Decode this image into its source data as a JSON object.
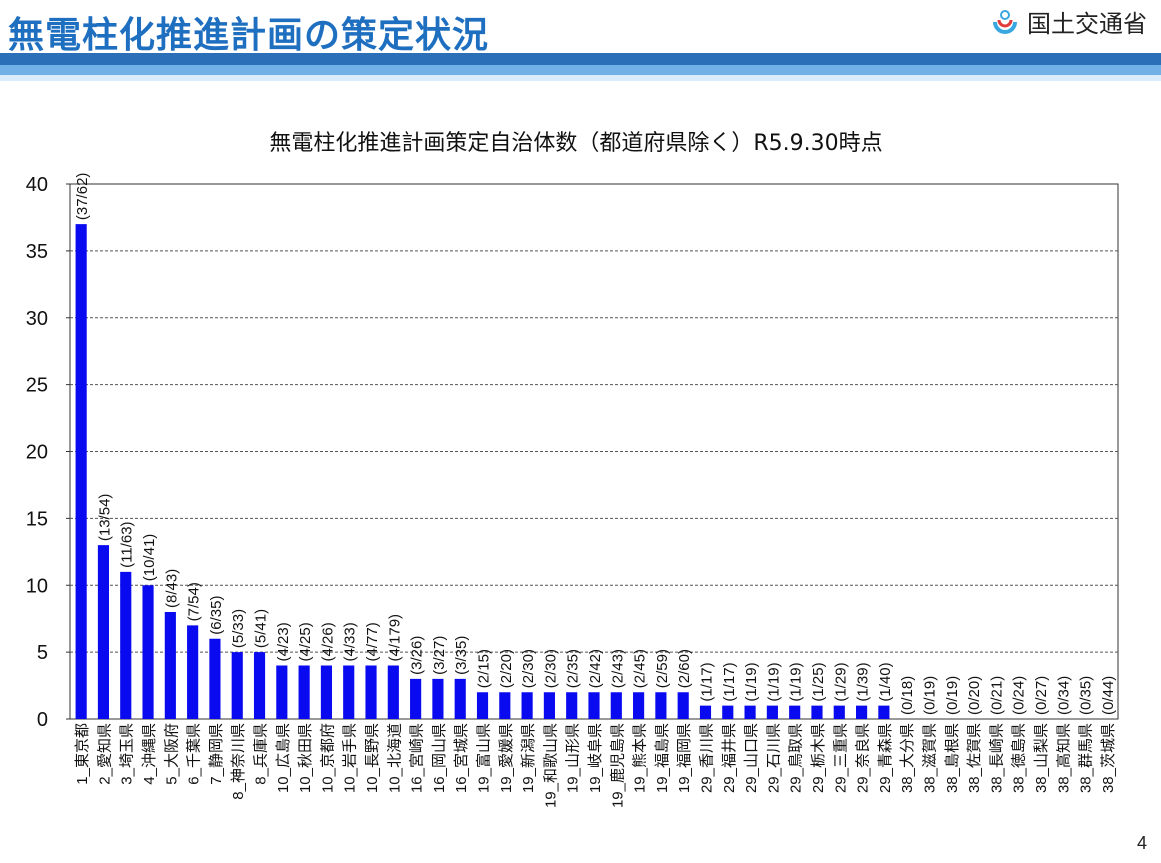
{
  "header": {
    "title": "無電柱化推進計画の策定状況",
    "logo_text": "国土交通省"
  },
  "page_number": "4",
  "colors": {
    "bar": "#0a0af0",
    "title_blue": "#1f6fc0",
    "band": "#2a6fb8"
  },
  "chart_data": {
    "type": "bar",
    "title": "無電柱化推進計画策定自治体数（都道府県除く）R5.9.30時点",
    "xlabel": "",
    "ylabel": "",
    "ylim": [
      0,
      40
    ],
    "yticks": [
      0,
      5,
      10,
      15,
      20,
      25,
      30,
      35,
      40
    ],
    "grid": "horizontal dashed",
    "categories": [
      "1_東京都",
      "2_愛知県",
      "3_埼玉県",
      "4_沖縄県",
      "5_大阪府",
      "6_千葉県",
      "7_静岡県",
      "8_神奈川県",
      "8_兵庫県",
      "10_広島県",
      "10_秋田県",
      "10_京都府",
      "10_岩手県",
      "10_長野県",
      "10_北海道",
      "16_宮崎県",
      "16_岡山県",
      "16_宮城県",
      "19_富山県",
      "19_愛媛県",
      "19_新潟県",
      "19_和歌山県",
      "19_山形県",
      "19_岐阜県",
      "19_鹿児島県",
      "19_熊本県",
      "19_福島県",
      "19_福岡県",
      "29_香川県",
      "29_福井県",
      "29_山口県",
      "29_石川県",
      "29_鳥取県",
      "29_栃木県",
      "29_三重県",
      "29_奈良県",
      "29_青森県",
      "38_大分県",
      "38_滋賀県",
      "38_島根県",
      "38_佐賀県",
      "38_長崎県",
      "38_徳島県",
      "38_山梨県",
      "38_高知県",
      "38_群馬県",
      "38_茨城県"
    ],
    "values": [
      37,
      13,
      11,
      10,
      8,
      7,
      6,
      5,
      5,
      4,
      4,
      4,
      4,
      4,
      4,
      3,
      3,
      3,
      2,
      2,
      2,
      2,
      2,
      2,
      2,
      2,
      2,
      2,
      1,
      1,
      1,
      1,
      1,
      1,
      1,
      1,
      1,
      0,
      0,
      0,
      0,
      0,
      0,
      0,
      0,
      0,
      0
    ],
    "data_labels": [
      "(37/62)",
      "(13/54)",
      "(11/63)",
      "(10/41)",
      "(8/43)",
      "(7/54)",
      "(6/35)",
      "(5/33)",
      "(5/41)",
      "(4/23)",
      "(4/25)",
      "(4/26)",
      "(4/33)",
      "(4/77)",
      "(4/179)",
      "(3/26)",
      "(3/27)",
      "(3/35)",
      "(2/15)",
      "(2/20)",
      "(2/30)",
      "(2/30)",
      "(2/35)",
      "(2/42)",
      "(2/43)",
      "(2/45)",
      "(2/59)",
      "(2/60)",
      "(1/17)",
      "(1/17)",
      "(1/19)",
      "(1/19)",
      "(1/19)",
      "(1/25)",
      "(1/29)",
      "(1/39)",
      "(1/40)",
      "(0/18)",
      "(0/19)",
      "(0/19)",
      "(0/20)",
      "(0/21)",
      "(0/24)",
      "(0/27)",
      "(0/34)",
      "(0/35)",
      "(0/44)"
    ]
  }
}
